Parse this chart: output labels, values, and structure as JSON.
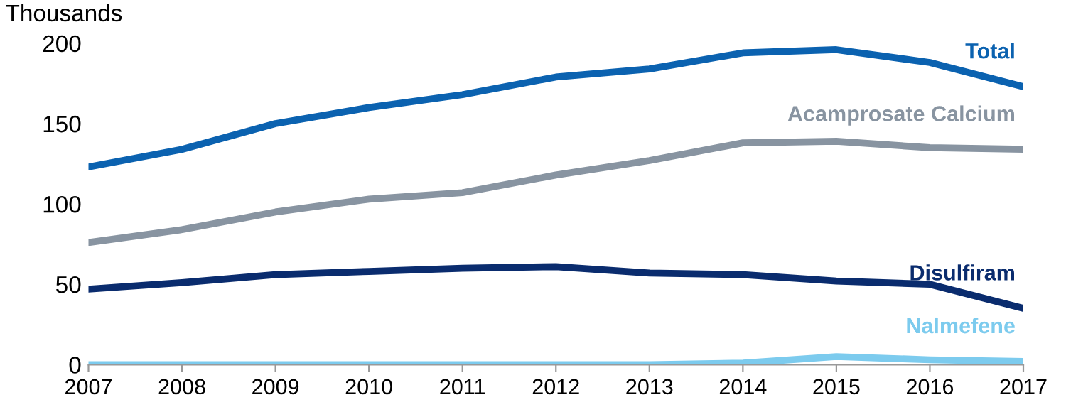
{
  "chart_data": {
    "type": "line",
    "ylabel": "Thousands",
    "x": [
      "2007",
      "2008",
      "2009",
      "2010",
      "2011",
      "2012",
      "2013",
      "2014",
      "2015",
      "2016",
      "2017"
    ],
    "xlim": [
      "2007",
      "2017"
    ],
    "xticks": [
      {
        "value": "2007",
        "label": "2007"
      },
      {
        "value": "2008",
        "label": "2008"
      },
      {
        "value": "2009",
        "label": "2009"
      },
      {
        "value": "2010",
        "label": "2010"
      },
      {
        "value": "2011",
        "label": "2011"
      },
      {
        "value": "2012",
        "label": "2012"
      },
      {
        "value": "2013",
        "label": "2013"
      },
      {
        "value": "2014",
        "label": "2014"
      },
      {
        "value": "2015",
        "label": "2015"
      },
      {
        "value": "2016",
        "label": "2016"
      },
      {
        "value": "2017",
        "label": "2017"
      }
    ],
    "ylim": [
      0,
      200
    ],
    "yticks": [
      0,
      50,
      100,
      150,
      200
    ],
    "grid": false,
    "legend": false,
    "series": [
      {
        "name": "Total",
        "color": "#0b62b0",
        "values": [
          123,
          134,
          150,
          160,
          168,
          179,
          184,
          194,
          196,
          188,
          173
        ]
      },
      {
        "name": "Acamprosate Calcium",
        "color": "#8894a1",
        "values": [
          76,
          84,
          95,
          103,
          107,
          118,
          127,
          138,
          139,
          135,
          134
        ]
      },
      {
        "name": "Disulfiram",
        "color": "#0a2c6e",
        "values": [
          47,
          51,
          56,
          58,
          60,
          61,
          57,
          56,
          52,
          50,
          35
        ]
      },
      {
        "name": "Nalmefene",
        "color": "#7ccbee",
        "values": [
          0,
          0,
          0,
          0,
          0,
          0,
          0,
          1,
          5,
          3,
          2
        ]
      }
    ]
  }
}
